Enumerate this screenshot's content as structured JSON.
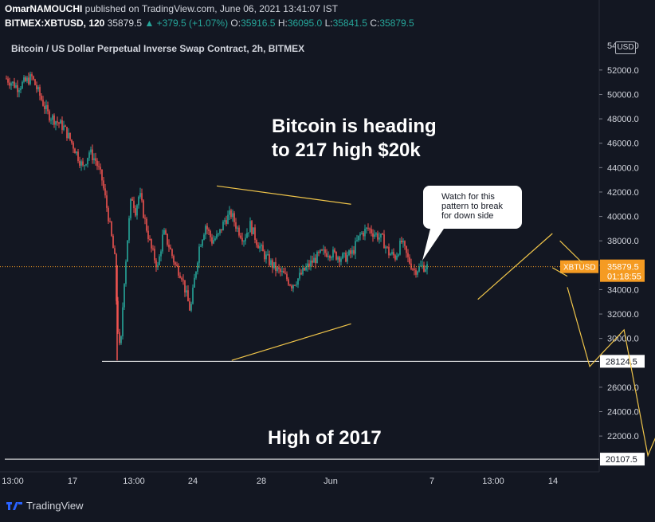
{
  "header": {
    "author": "OmarNAMOUCHI",
    "published": " published on TradingView.com, June 06, 2021 13:41:07 IST",
    "symbol": "BITMEX:XBTUSD, 120",
    "last": "35879.5",
    "change": "+379.5 (+1.07%)",
    "o_label": "O:",
    "o_value": "35916.5",
    "h_label": "H:",
    "h_value": "36095.0",
    "l_label": "L:",
    "l_value": "35841.5",
    "c_label": "C:",
    "c_value": "35879.5"
  },
  "currency_button": "USD",
  "footer": {
    "brand": "TradingView"
  },
  "colors": {
    "bg": "#131722",
    "up": "#26a69a",
    "down": "#ef5350",
    "annotation": "#f0c54a",
    "price_tag": "#f59b22"
  },
  "chart_data": {
    "type": "candlestick",
    "title": "Bitcoin / US Dollar Perpetual Inverse Swap Contract, 2h, BITMEX",
    "y_axis": {
      "ylim": [
        19200,
        54800
      ],
      "ticks": [
        "52000.0",
        "50000.0",
        "48000.0",
        "46000.0",
        "44000.0",
        "42000.0",
        "40000.0",
        "38000.0",
        "36000.0",
        "34000.0",
        "32000.0",
        "30000.0",
        "26000.0",
        "24000.0",
        "22000.0"
      ],
      "top_clipped_label": "54000.0"
    },
    "x_axis": {
      "ticks": [
        "13:00",
        "17",
        "13:00",
        "24",
        "28",
        "Jun",
        "7",
        "13:00",
        "14"
      ]
    },
    "last_price": {
      "symbol": "XBTUSD",
      "value": "35879.5",
      "countdown": "01:18:55"
    },
    "horizontal_lines": [
      {
        "label": "28124.5",
        "value": 28124.5
      },
      {
        "label": "20107.5",
        "value": 20107.5
      }
    ],
    "price_path": [
      [
        8,
        51300
      ],
      [
        22,
        50600
      ],
      [
        40,
        51400
      ],
      [
        60,
        48400
      ],
      [
        80,
        47300
      ],
      [
        92,
        45800
      ],
      [
        104,
        44000
      ],
      [
        112,
        45300
      ],
      [
        120,
        44600
      ],
      [
        128,
        43000
      ],
      [
        136,
        40000
      ],
      [
        144,
        36500
      ],
      [
        147,
        31500
      ],
      [
        151,
        28500
      ],
      [
        155,
        34000
      ],
      [
        160,
        38200
      ],
      [
        165,
        41800
      ],
      [
        170,
        40500
      ],
      [
        175,
        41900
      ],
      [
        182,
        39600
      ],
      [
        190,
        37300
      ],
      [
        198,
        35800
      ],
      [
        205,
        38700
      ],
      [
        212,
        37600
      ],
      [
        220,
        36000
      ],
      [
        228,
        35200
      ],
      [
        234,
        33500
      ],
      [
        239,
        32200
      ],
      [
        244,
        34800
      ],
      [
        250,
        37500
      ],
      [
        258,
        39300
      ],
      [
        266,
        38000
      ],
      [
        274,
        38400
      ],
      [
        282,
        39700
      ],
      [
        290,
        40200
      ],
      [
        298,
        39000
      ],
      [
        306,
        38200
      ],
      [
        314,
        39300
      ],
      [
        322,
        38000
      ],
      [
        330,
        37000
      ],
      [
        338,
        36300
      ],
      [
        346,
        35700
      ],
      [
        356,
        35200
      ],
      [
        366,
        34400
      ],
      [
        374,
        34900
      ],
      [
        382,
        35600
      ],
      [
        392,
        36300
      ],
      [
        402,
        36900
      ],
      [
        412,
        37100
      ],
      [
        422,
        36800
      ],
      [
        432,
        36600
      ],
      [
        442,
        37000
      ],
      [
        452,
        38500
      ],
      [
        462,
        39000
      ],
      [
        472,
        38500
      ],
      [
        480,
        38100
      ],
      [
        488,
        37000
      ],
      [
        496,
        36700
      ],
      [
        504,
        37900
      ],
      [
        512,
        36500
      ],
      [
        520,
        35600
      ],
      [
        530,
        35900
      ],
      [
        537,
        35880
      ]
    ],
    "annotations": [
      {
        "type": "text",
        "lines": [
          "Bitcoin is heading",
          "to 217 high $20k"
        ]
      },
      {
        "type": "text",
        "lines": [
          "High of 2017"
        ]
      },
      {
        "type": "callout",
        "lines": [
          "Watch for this",
          "pattern to break",
          "for down side"
        ]
      }
    ],
    "drawings": [
      {
        "name": "triangle-upper-line",
        "points": [
          [
            14,
            42500
          ],
          [
            23,
            41000
          ]
        ]
      },
      {
        "name": "triangle-lower-line",
        "points": [
          [
            15,
            28200
          ],
          [
            23,
            31200
          ]
        ]
      },
      {
        "name": "rising-channel-line",
        "points": [
          [
            31.5,
            33200
          ],
          [
            36.5,
            38600
          ]
        ]
      },
      {
        "name": "wedge-upper-line",
        "points": [
          [
            37,
            38000
          ],
          [
            38.5,
            36200
          ]
        ]
      },
      {
        "name": "wedge-lower-line",
        "points": [
          [
            36.5,
            35800
          ],
          [
            37.5,
            35100
          ]
        ]
      },
      {
        "name": "projection-path",
        "points": [
          [
            37.5,
            34200
          ],
          [
            39,
            27700
          ],
          [
            41.3,
            30700
          ],
          [
            42.9,
            20400
          ],
          [
            44.5,
            25000
          ]
        ]
      }
    ]
  }
}
